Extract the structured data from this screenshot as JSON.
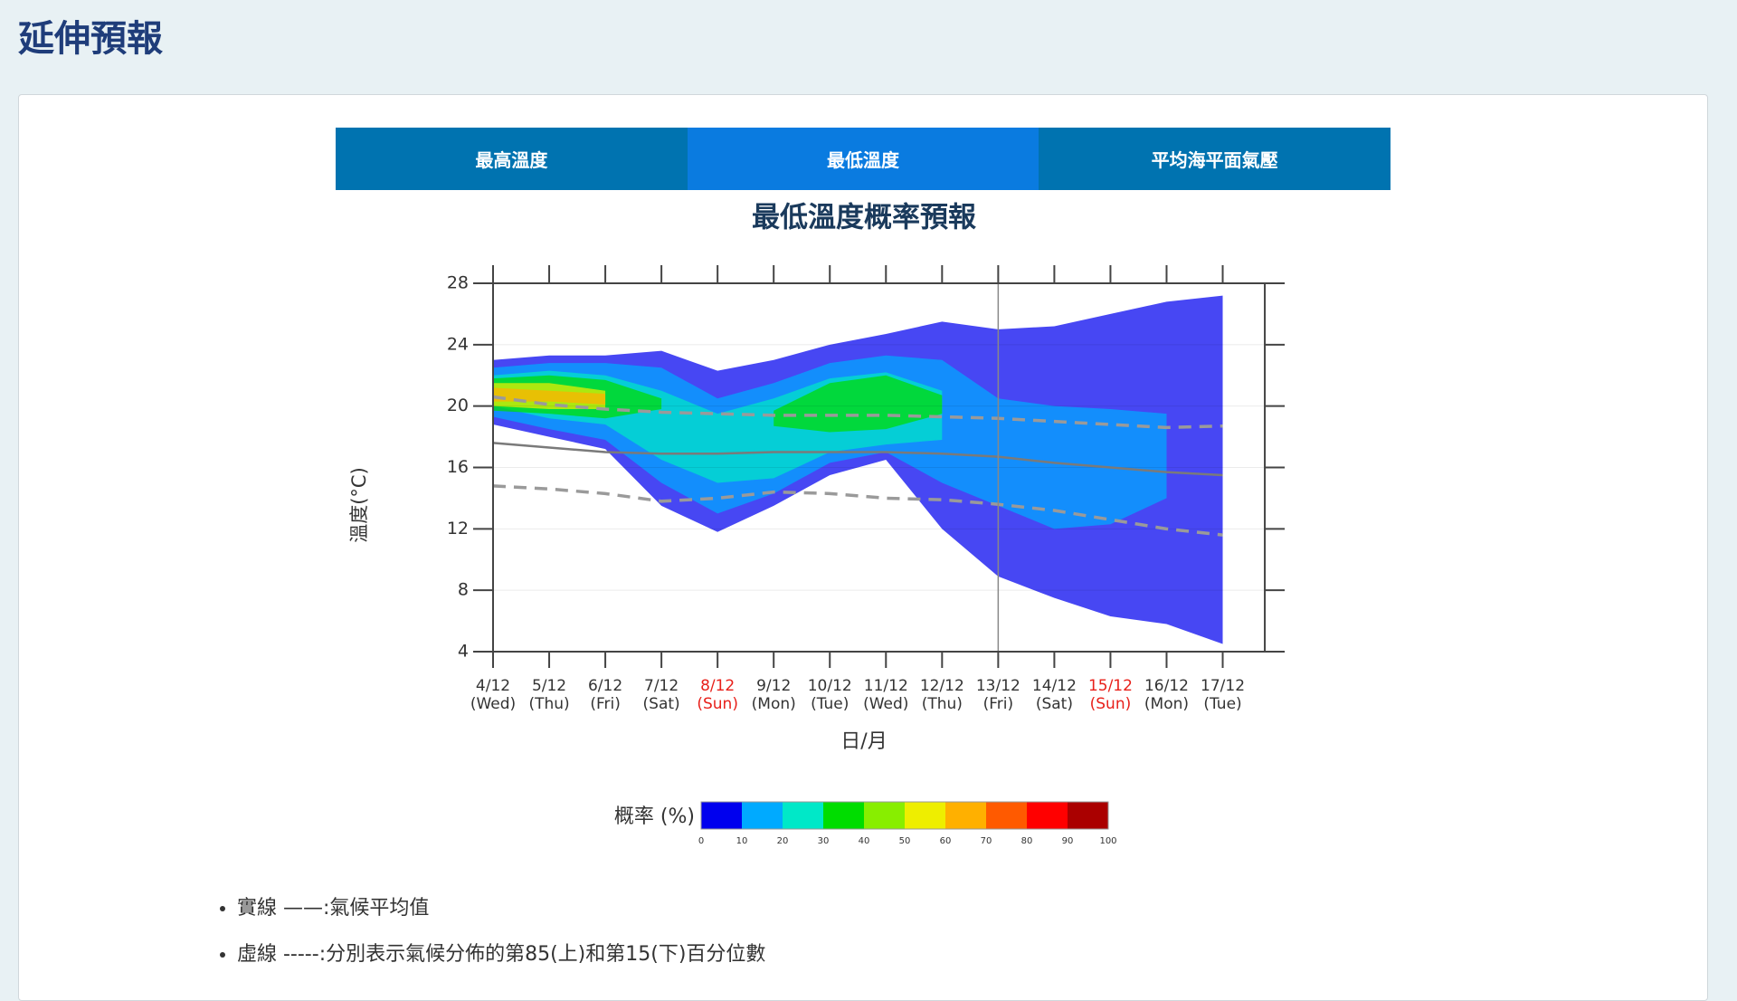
{
  "header": {
    "title": "延伸預報"
  },
  "tabs": {
    "items": [
      "最高溫度",
      "最低溫度",
      "平均海平面氣壓"
    ],
    "active": 1
  },
  "chart_data": {
    "type": "contour",
    "title": "最低溫度概率預報",
    "x_label": "日/月",
    "y_label": "溫度(°C)",
    "categories": [
      "4/12",
      "5/12",
      "6/12",
      "7/12",
      "8/12",
      "9/12",
      "10/12",
      "11/12",
      "12/12",
      "13/12",
      "14/12",
      "15/12",
      "16/12",
      "17/12"
    ],
    "weekdays": [
      "(Wed)",
      "(Thu)",
      "(Fri)",
      "(Sat)",
      "(Sun)",
      "(Mon)",
      "(Tue)",
      "(Wed)",
      "(Thu)",
      "(Fri)",
      "(Sat)",
      "(Sun)",
      "(Mon)",
      "(Tue)"
    ],
    "category_colors": [
      "#333",
      "#333",
      "#333",
      "#333",
      "#e8201a",
      "#333",
      "#333",
      "#333",
      "#333",
      "#333",
      "#333",
      "#e8201a",
      "#333",
      "#333"
    ],
    "divider_index": 9,
    "ylim": [
      4,
      28
    ],
    "yticks": [
      4,
      8,
      12,
      16,
      20,
      24,
      28
    ],
    "grid": true,
    "contours": [
      {
        "level": 0,
        "high": [
          23.0,
          23.3,
          23.3,
          23.6,
          22.3,
          23.0,
          24.0,
          24.7,
          25.5,
          25.0,
          25.2,
          26.0,
          26.8,
          27.2
        ],
        "low": [
          18.8,
          18.0,
          17.2,
          13.5,
          11.8,
          13.5,
          15.5,
          16.5,
          12.0,
          8.9,
          7.5,
          6.3,
          5.8,
          4.5
        ]
      },
      {
        "level": 10,
        "high": [
          22.5,
          22.8,
          22.8,
          22.5,
          20.5,
          21.5,
          22.8,
          23.3,
          23.0,
          20.5,
          20.0,
          19.8,
          19.5,
          null
        ],
        "low": [
          19.3,
          18.5,
          17.8,
          15.0,
          13.0,
          14.3,
          16.3,
          17.0,
          15.0,
          13.5,
          12.0,
          12.3,
          14.0,
          null
        ]
      },
      {
        "level": 20,
        "high": [
          22.0,
          22.3,
          22.0,
          21.0,
          19.5,
          20.5,
          21.8,
          22.2,
          21.0,
          null,
          null,
          null,
          null,
          null
        ],
        "low": [
          20.0,
          19.2,
          18.8,
          16.5,
          15.0,
          15.3,
          17.0,
          17.5,
          17.8,
          null,
          null,
          null,
          null,
          null
        ]
      },
      {
        "level": 30,
        "high": [
          21.8,
          22.0,
          21.7,
          20.5,
          null,
          null,
          null,
          null,
          null,
          null,
          null,
          null,
          null,
          null
        ],
        "low": [
          19.7,
          19.5,
          19.2,
          19.8,
          null,
          null,
          null,
          null,
          null,
          null,
          null,
          null,
          null,
          null
        ]
      },
      {
        "level": 30,
        "high": [
          null,
          null,
          null,
          null,
          null,
          19.7,
          21.5,
          22.0,
          20.7,
          null,
          null,
          null,
          null,
          null
        ],
        "low": [
          null,
          null,
          null,
          null,
          null,
          18.7,
          18.3,
          18.5,
          19.5,
          null,
          null,
          null,
          null,
          null
        ]
      },
      {
        "level": 50,
        "high": [
          21.5,
          21.5,
          21.0,
          null,
          null,
          null,
          null,
          null,
          null,
          null,
          null,
          null,
          null,
          null
        ],
        "low": [
          20.0,
          19.8,
          19.8,
          null,
          null,
          null,
          null,
          null,
          null,
          null,
          null,
          null,
          null,
          null
        ]
      },
      {
        "level": 60,
        "high": [
          21.2,
          21.0,
          20.8,
          null,
          null,
          null,
          null,
          null,
          null,
          null,
          null,
          null,
          null,
          null
        ],
        "low": [
          20.3,
          20.3,
          20.1,
          null,
          null,
          null,
          null,
          null,
          null,
          null,
          null,
          null,
          null,
          null
        ]
      }
    ],
    "series": [
      {
        "style": "solid",
        "color": "#7a7a7a",
        "values": [
          17.6,
          17.3,
          17.0,
          16.9,
          16.9,
          17.0,
          17.0,
          17.0,
          16.9,
          16.7,
          16.3,
          16.0,
          15.7,
          15.5
        ]
      },
      {
        "style": "dashed",
        "color": "#9a9a9a",
        "values": [
          20.6,
          20.1,
          19.8,
          19.6,
          19.5,
          19.4,
          19.4,
          19.4,
          19.3,
          19.2,
          19.0,
          18.8,
          18.6,
          18.7
        ]
      },
      {
        "style": "dashed",
        "color": "#9a9a9a",
        "values": [
          14.8,
          14.6,
          14.3,
          13.8,
          14.0,
          14.4,
          14.3,
          14.0,
          13.9,
          13.6,
          13.2,
          12.6,
          12.0,
          11.6
        ]
      }
    ],
    "colorbar": {
      "label": "概率 (%)",
      "ticks": [
        0,
        10,
        20,
        30,
        40,
        50,
        60,
        70,
        80,
        90,
        100
      ],
      "colors": [
        "#0000ee",
        "#00aaff",
        "#00e8c8",
        "#00dd00",
        "#88ee00",
        "#eeee00",
        "#ffb000",
        "#ff5a00",
        "#ff0000",
        "#aa0000"
      ]
    }
  },
  "notes": [
    {
      "term": "實線 ——",
      "text": ":氣候平均值"
    },
    {
      "term": "虛線 -----",
      "text": ":分別表示氣候分佈的第85(上)和第15(下)百分位數"
    }
  ]
}
